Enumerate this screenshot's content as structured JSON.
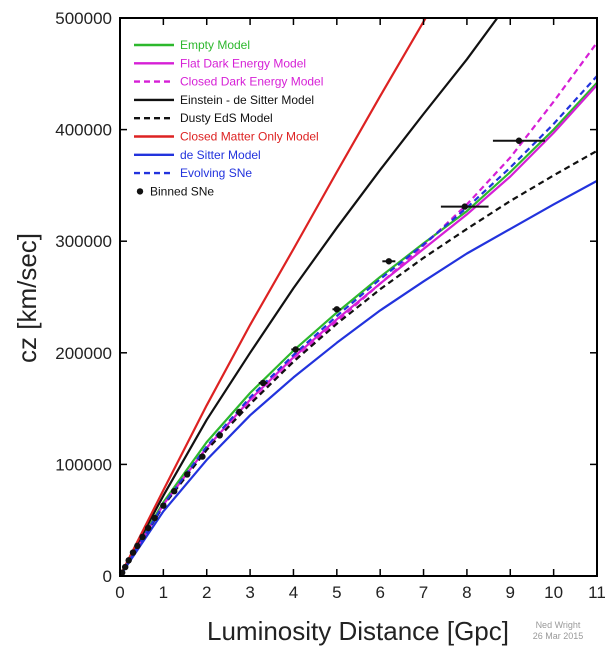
{
  "chart_data": {
    "type": "line",
    "title": "",
    "xlabel": "Luminosity Distance [Gpc]",
    "ylabel": "cz [km/sec]",
    "xlim": [
      0,
      11
    ],
    "ylim": [
      0,
      500000
    ],
    "x_ticks": [
      "0",
      "1",
      "2",
      "3",
      "4",
      "5",
      "6",
      "7",
      "8",
      "9",
      "10",
      "11"
    ],
    "y_ticks": [
      "0",
      "100000",
      "200000",
      "300000",
      "400000",
      "500000"
    ],
    "grid": false,
    "legend_position": "top-left",
    "credit": [
      "Ned Wright",
      "26 Mar 2015"
    ],
    "series": [
      {
        "name": "Empty Model",
        "color": "#2db82d",
        "dash": "solid",
        "label_color": "#2db82d",
        "x": [
          0,
          1,
          2,
          3,
          4,
          5,
          6,
          7,
          8,
          9,
          10,
          11
        ],
        "y": [
          0,
          66000,
          120000,
          164000,
          202000,
          236000,
          268000,
          298000,
          327000,
          362000,
          400000,
          442000
        ]
      },
      {
        "name": "Flat Dark Energy Model",
        "color": "#d61fd6",
        "dash": "solid",
        "label_color": "#d61fd6",
        "x": [
          0,
          1,
          2,
          3,
          4,
          5,
          6,
          7,
          8,
          9,
          10,
          11
        ],
        "y": [
          0,
          64000,
          115000,
          158000,
          196000,
          230000,
          262000,
          293000,
          324000,
          358000,
          397000,
          440000
        ]
      },
      {
        "name": "Closed Dark Energy Model",
        "color": "#d61fd6",
        "dash": "dash",
        "label_color": "#d61fd6",
        "x": [
          0,
          1,
          2,
          3,
          4,
          5,
          6,
          7,
          8,
          9,
          10,
          11
        ],
        "y": [
          0,
          63000,
          113000,
          155000,
          193000,
          228000,
          262000,
          296000,
          333000,
          375000,
          425000,
          478000
        ]
      },
      {
        "name": "Einstein - de Sitter Model",
        "color": "#111111",
        "dash": "solid",
        "label_color": "#111111",
        "x": [
          0,
          1,
          2,
          3,
          4,
          5,
          6,
          7,
          8,
          8.7
        ],
        "y": [
          0,
          72000,
          140000,
          200000,
          258000,
          312000,
          364000,
          414000,
          463000,
          500000
        ]
      },
      {
        "name": "Dusty EdS Model",
        "color": "#111111",
        "dash": "dash",
        "label_color": "#111111",
        "x": [
          0,
          1,
          2,
          3,
          4,
          5,
          6,
          7,
          8,
          9,
          10,
          11
        ],
        "y": [
          0,
          63000,
          113000,
          154000,
          192000,
          226000,
          257000,
          285000,
          311000,
          336000,
          359000,
          381000
        ]
      },
      {
        "name": "Closed Matter Only Model",
        "color": "#dd2222",
        "dash": "solid",
        "label_color": "#dd2222",
        "x": [
          0,
          1,
          2,
          3,
          4,
          5,
          6,
          7.05
        ],
        "y": [
          0,
          77000,
          153000,
          225000,
          293000,
          362000,
          430000,
          500000
        ]
      },
      {
        "name": "de Sitter Model",
        "color": "#2233dd",
        "dash": "solid",
        "label_color": "#2233dd",
        "x": [
          0,
          1,
          2,
          3,
          4,
          5,
          6,
          7,
          8,
          9,
          10,
          11
        ],
        "y": [
          0,
          58000,
          104000,
          144000,
          178000,
          209000,
          238000,
          264000,
          289000,
          311000,
          333000,
          354000
        ]
      },
      {
        "name": "Evolving SNe",
        "color": "#2233dd",
        "dash": "dash",
        "label_color": "#2233dd",
        "x": [
          0,
          1,
          2,
          3,
          4,
          5,
          6,
          7,
          8,
          9,
          10,
          11
        ],
        "y": [
          0,
          64000,
          116000,
          160000,
          198000,
          233000,
          266000,
          297000,
          330000,
          366000,
          405000,
          448000
        ]
      }
    ],
    "binned_points": {
      "name": "Binned SNe",
      "color": "#111111",
      "points": [
        {
          "x": 0.05,
          "y": 3000,
          "xerr": 0
        },
        {
          "x": 0.12,
          "y": 8000,
          "xerr": 0
        },
        {
          "x": 0.2,
          "y": 14000,
          "xerr": 0
        },
        {
          "x": 0.3,
          "y": 21000,
          "xerr": 0
        },
        {
          "x": 0.4,
          "y": 27000,
          "xerr": 0
        },
        {
          "x": 0.52,
          "y": 35000,
          "xerr": 0
        },
        {
          "x": 0.65,
          "y": 43000,
          "xerr": 0
        },
        {
          "x": 0.8,
          "y": 52000,
          "xerr": 0
        },
        {
          "x": 1.0,
          "y": 63000,
          "xerr": 0
        },
        {
          "x": 1.25,
          "y": 76000,
          "xerr": 0
        },
        {
          "x": 1.55,
          "y": 91000,
          "xerr": 0
        },
        {
          "x": 1.9,
          "y": 107000,
          "xerr": 0
        },
        {
          "x": 2.3,
          "y": 126000,
          "xerr": 0
        },
        {
          "x": 2.75,
          "y": 147000,
          "xerr": 0
        },
        {
          "x": 3.3,
          "y": 173000,
          "xerr": 0.1
        },
        {
          "x": 4.05,
          "y": 203000,
          "xerr": 0.1
        },
        {
          "x": 5.0,
          "y": 239000,
          "xerr": 0.1
        },
        {
          "x": 6.2,
          "y": 282000,
          "xerr": 0.15
        },
        {
          "x": 7.95,
          "y": 331000,
          "xerr": 0.55
        },
        {
          "x": 9.2,
          "y": 390000,
          "xerr": 0.6
        }
      ]
    }
  }
}
